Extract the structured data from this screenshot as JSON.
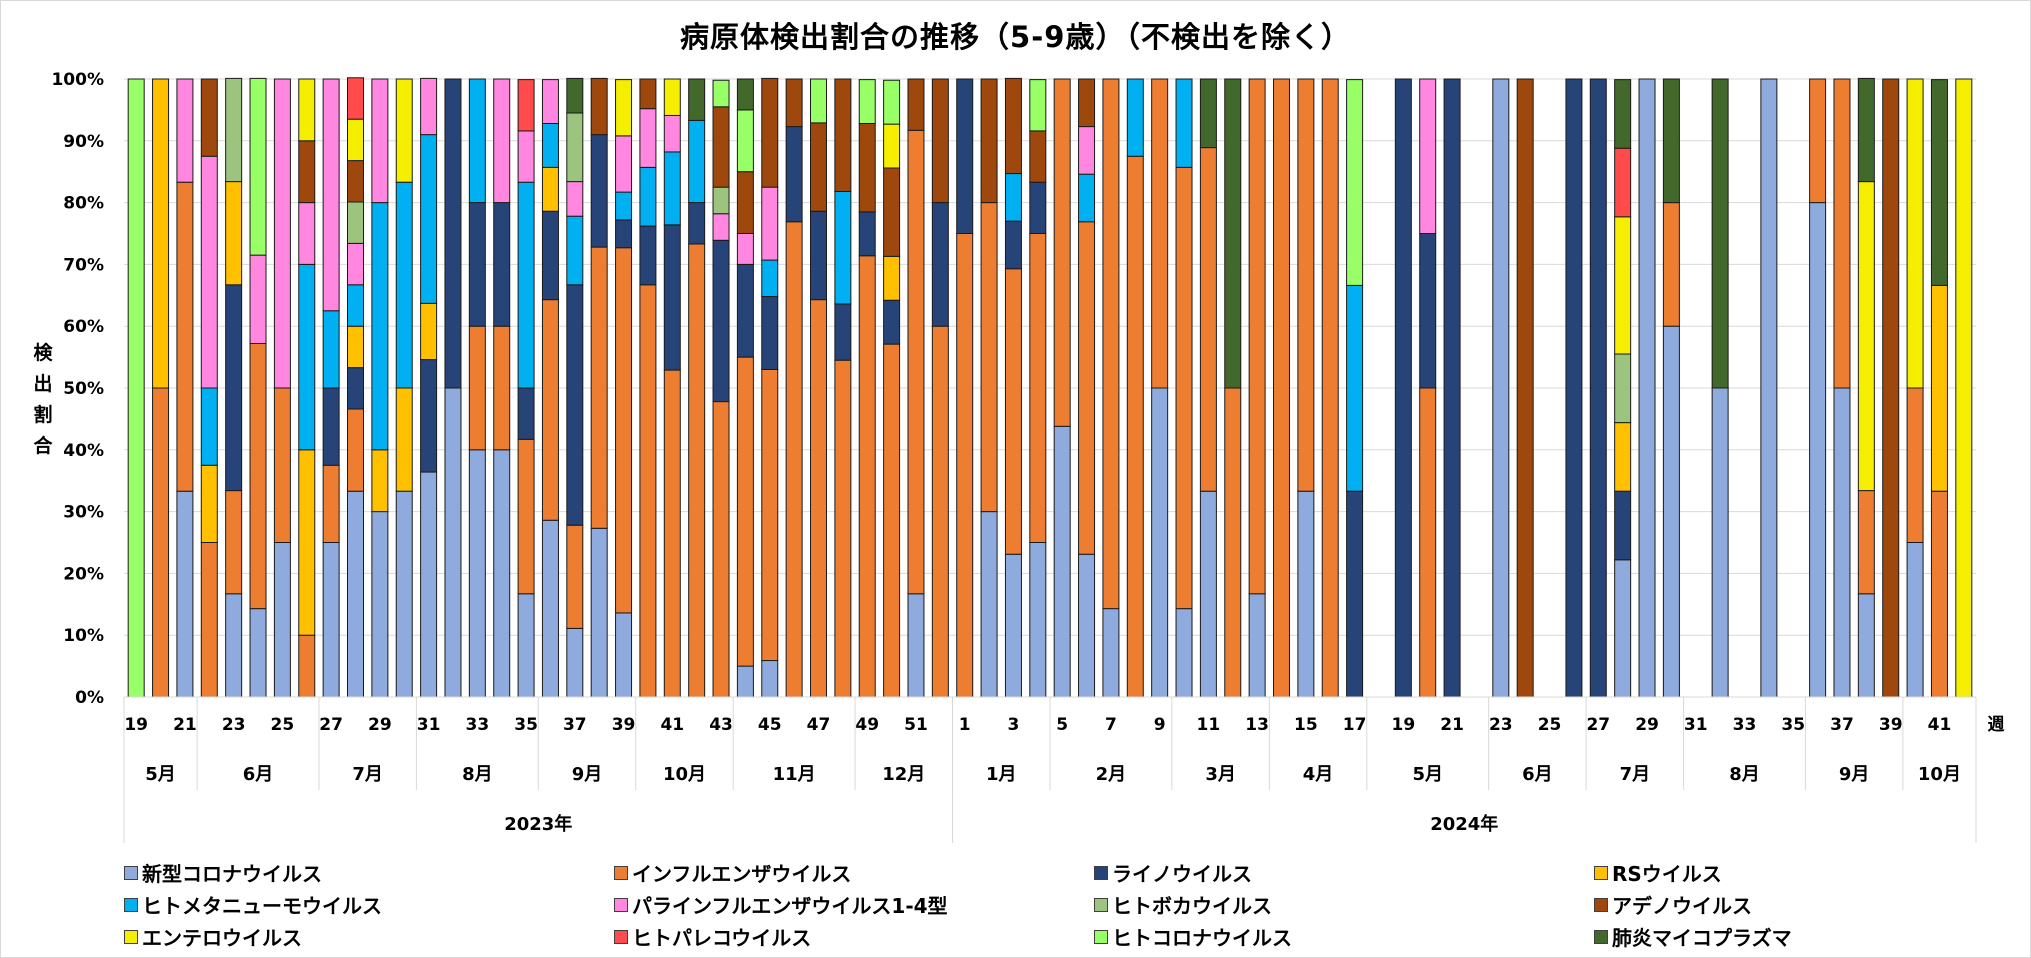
{
  "chart_data": {
    "type": "bar",
    "stacked": true,
    "percent_stacked": true,
    "title": "病原体検出割合の推移（5-9歳）（不検出を除く）",
    "ylabel": "検出割合",
    "ylabel_chars": [
      "検",
      "出",
      "割",
      "合"
    ],
    "xlabel": "週",
    "ylim": [
      0,
      100
    ],
    "yticks": [
      "0%",
      "10%",
      "20%",
      "30%",
      "40%",
      "50%",
      "60%",
      "70%",
      "80%",
      "90%",
      "100%"
    ],
    "grid": true,
    "legend_position": "bottom",
    "series": [
      {
        "key": "covid",
        "name": "新型コロナウイルス",
        "color": "#8FAADC"
      },
      {
        "key": "flu",
        "name": "インフルエンザウイルス",
        "color": "#ED7D31"
      },
      {
        "key": "rhino",
        "name": "ライノウイルス",
        "color": "#264478"
      },
      {
        "key": "rs",
        "name": "RSウイルス",
        "color": "#FFC000"
      },
      {
        "key": "hmpv",
        "name": "ヒトメタニューモウイルス",
        "color": "#00B0F0"
      },
      {
        "key": "para",
        "name": "パラインフルエンザウイルス1-4型",
        "color": "#FF87E0"
      },
      {
        "key": "boca",
        "name": "ヒトボカウイルス",
        "color": "#9DC47E"
      },
      {
        "key": "adeno",
        "name": "アデノウイルス",
        "color": "#9E480E"
      },
      {
        "key": "entero",
        "name": "エンテロウイルス",
        "color": "#F5EE00"
      },
      {
        "key": "parecho",
        "name": "ヒトパレコウイルス",
        "color": "#FF4B4B"
      },
      {
        "key": "hcov",
        "name": "ヒトコロナウイルス",
        "color": "#99FF66"
      },
      {
        "key": "myco",
        "name": "肺炎マイコプラズマ",
        "color": "#43682B"
      }
    ],
    "years": [
      {
        "label": "2023年",
        "months": [
          {
            "label": "5月",
            "weeks": 3
          },
          {
            "label": "6月",
            "weeks": 5
          },
          {
            "label": "7月",
            "weeks": 4
          },
          {
            "label": "8月",
            "weeks": 5
          },
          {
            "label": "9月",
            "weeks": 4
          },
          {
            "label": "10月",
            "weeks": 4
          },
          {
            "label": "11月",
            "weeks": 5
          },
          {
            "label": "12月",
            "weeks": 4
          }
        ]
      },
      {
        "label": "2024年",
        "months": [
          {
            "label": "1月",
            "weeks": 4
          },
          {
            "label": "2月",
            "weeks": 5
          },
          {
            "label": "3月",
            "weeks": 4
          },
          {
            "label": "4月",
            "weeks": 4
          },
          {
            "label": "5月",
            "weeks": 5
          },
          {
            "label": "6月",
            "weeks": 4
          },
          {
            "label": "7月",
            "weeks": 4
          },
          {
            "label": "8月",
            "weeks": 5
          },
          {
            "label": "9月",
            "weeks": 4
          },
          {
            "label": "10月",
            "weeks": 3
          }
        ]
      }
    ],
    "week_tick_labels": [
      {
        "year": 2023,
        "week": 19
      },
      {
        "year": 2023,
        "week": 21
      },
      {
        "year": 2023,
        "week": 23
      },
      {
        "year": 2023,
        "week": 25
      },
      {
        "year": 2023,
        "week": 27
      },
      {
        "year": 2023,
        "week": 29
      },
      {
        "year": 2023,
        "week": 31
      },
      {
        "year": 2023,
        "week": 33
      },
      {
        "year": 2023,
        "week": 35
      },
      {
        "year": 2023,
        "week": 37
      },
      {
        "year": 2023,
        "week": 39
      },
      {
        "year": 2023,
        "week": 41
      },
      {
        "year": 2023,
        "week": 43
      },
      {
        "year": 2023,
        "week": 45
      },
      {
        "year": 2023,
        "week": 47
      },
      {
        "year": 2023,
        "week": 49
      },
      {
        "year": 2023,
        "week": 51
      },
      {
        "year": 2024,
        "week": 1
      },
      {
        "year": 2024,
        "week": 3
      },
      {
        "year": 2024,
        "week": 5
      },
      {
        "year": 2024,
        "week": 7
      },
      {
        "year": 2024,
        "week": 9
      },
      {
        "year": 2024,
        "week": 11
      },
      {
        "year": 2024,
        "week": 13
      },
      {
        "year": 2024,
        "week": 15
      },
      {
        "year": 2024,
        "week": 17
      },
      {
        "year": 2024,
        "week": 19
      },
      {
        "year": 2024,
        "week": 21
      },
      {
        "year": 2024,
        "week": 23
      },
      {
        "year": 2024,
        "week": 25
      },
      {
        "year": 2024,
        "week": 27
      },
      {
        "year": 2024,
        "week": 29
      },
      {
        "year": 2024,
        "week": 31
      },
      {
        "year": 2024,
        "week": 33
      },
      {
        "year": 2024,
        "week": 35
      },
      {
        "year": 2024,
        "week": 37
      },
      {
        "year": 2024,
        "week": 39
      },
      {
        "year": 2024,
        "week": 41
      }
    ],
    "weeks": [
      {
        "year": 2023,
        "week": 19,
        "values": {
          "hcov": 100
        }
      },
      {
        "year": 2023,
        "week": 20,
        "values": {
          "flu": 50,
          "rs": 50
        }
      },
      {
        "year": 2023,
        "week": 21,
        "values": {
          "covid": 33.3,
          "flu": 50,
          "para": 16.7
        }
      },
      {
        "year": 2023,
        "week": 22,
        "values": {
          "flu": 25,
          "rs": 12.5,
          "hmpv": 12.5,
          "para": 37.5,
          "adeno": 12.5
        }
      },
      {
        "year": 2023,
        "week": 23,
        "values": {
          "covid": 16.7,
          "flu": 16.7,
          "rhino": 33.3,
          "rs": 16.7,
          "boca": 16.7
        }
      },
      {
        "year": 2023,
        "week": 24,
        "values": {
          "covid": 14.3,
          "flu": 42.9,
          "para": 14.3,
          "hcov": 28.6
        }
      },
      {
        "year": 2023,
        "week": 25,
        "values": {
          "covid": 25,
          "flu": 25,
          "para": 50
        }
      },
      {
        "year": 2023,
        "week": 26,
        "values": {
          "flu": 10,
          "rs": 30,
          "hmpv": 30,
          "para": 10,
          "adeno": 10,
          "entero": 10
        }
      },
      {
        "year": 2023,
        "week": 27,
        "values": {
          "covid": 25,
          "flu": 12.5,
          "rhino": 12.5,
          "hmpv": 12.5,
          "para": 37.5
        }
      },
      {
        "year": 2023,
        "week": 28,
        "values": {
          "covid": 33.3,
          "flu": 13.3,
          "rhino": 6.7,
          "rs": 6.7,
          "hmpv": 6.7,
          "para": 6.7,
          "boca": 6.7,
          "adeno": 6.7,
          "entero": 6.7,
          "parecho": 6.7
        }
      },
      {
        "year": 2023,
        "week": 29,
        "values": {
          "covid": 30,
          "rs": 10,
          "hmpv": 40,
          "para": 20
        }
      },
      {
        "year": 2023,
        "week": 30,
        "values": {
          "covid": 33.3,
          "rs": 16.7,
          "hmpv": 33.3,
          "entero": 16.7
        }
      },
      {
        "year": 2023,
        "week": 31,
        "values": {
          "covid": 36.4,
          "rhino": 18.2,
          "rs": 9.1,
          "hmpv": 27.3,
          "para": 9.1
        }
      },
      {
        "year": 2023,
        "week": 32,
        "values": {
          "covid": 50,
          "rhino": 50
        }
      },
      {
        "year": 2023,
        "week": 33,
        "values": {
          "covid": 40,
          "flu": 20,
          "rhino": 20,
          "hmpv": 20
        }
      },
      {
        "year": 2023,
        "week": 34,
        "values": {
          "covid": 40,
          "flu": 20,
          "rhino": 20,
          "para": 20
        }
      },
      {
        "year": 2023,
        "week": 35,
        "values": {
          "covid": 16.7,
          "flu": 25,
          "rhino": 8.3,
          "hmpv": 33.3,
          "para": 8.3,
          "parecho": 8.3
        }
      },
      {
        "year": 2023,
        "week": 36,
        "values": {
          "covid": 28.6,
          "flu": 35.7,
          "rhino": 14.3,
          "rs": 7.1,
          "hmpv": 7.1,
          "para": 7.1
        }
      },
      {
        "year": 2023,
        "week": 37,
        "values": {
          "covid": 11.1,
          "flu": 16.7,
          "rhino": 38.9,
          "hmpv": 11.1,
          "para": 5.6,
          "boca": 11.1,
          "myco": 5.6
        }
      },
      {
        "year": 2023,
        "week": 38,
        "values": {
          "covid": 27.3,
          "flu": 45.5,
          "rhino": 18.2,
          "adeno": 9.1
        }
      },
      {
        "year": 2023,
        "week": 39,
        "values": {
          "covid": 13.6,
          "flu": 59.1,
          "rhino": 4.5,
          "hmpv": 4.5,
          "para": 9.1,
          "entero": 9.1
        }
      },
      {
        "year": 2023,
        "week": 40,
        "values": {
          "flu": 66.7,
          "rhino": 9.5,
          "hmpv": 9.5,
          "para": 9.5,
          "adeno": 4.8
        }
      },
      {
        "year": 2023,
        "week": 41,
        "values": {
          "flu": 52.9,
          "rhino": 23.5,
          "hmpv": 11.8,
          "para": 5.9,
          "entero": 5.9
        }
      },
      {
        "year": 2023,
        "week": 42,
        "values": {
          "flu": 73.3,
          "rhino": 6.7,
          "hmpv": 13.3,
          "myco": 6.7
        }
      },
      {
        "year": 2023,
        "week": 43,
        "values": {
          "flu": 47.8,
          "rhino": 26.1,
          "para": 4.3,
          "boca": 4.3,
          "adeno": 13.0,
          "hcov": 4.3
        }
      },
      {
        "year": 2023,
        "week": 44,
        "values": {
          "covid": 5,
          "flu": 50,
          "rhino": 15,
          "para": 5,
          "adeno": 10,
          "hcov": 10,
          "myco": 5
        }
      },
      {
        "year": 2023,
        "week": 45,
        "values": {
          "covid": 5.9,
          "flu": 47.1,
          "rhino": 11.8,
          "hmpv": 5.9,
          "para": 11.8,
          "adeno": 17.6
        }
      },
      {
        "year": 2023,
        "week": 46,
        "values": {
          "flu": 76.9,
          "rhino": 15.4,
          "adeno": 7.7
        }
      },
      {
        "year": 2023,
        "week": 47,
        "values": {
          "flu": 64.3,
          "rhino": 14.3,
          "adeno": 14.3,
          "hcov": 7.1
        }
      },
      {
        "year": 2023,
        "week": 48,
        "values": {
          "flu": 54.5,
          "rhino": 9.1,
          "hmpv": 18.2,
          "adeno": 18.2
        }
      },
      {
        "year": 2023,
        "week": 49,
        "values": {
          "flu": 71.4,
          "rhino": 7.1,
          "adeno": 14.3,
          "hcov": 7.1
        }
      },
      {
        "year": 2023,
        "week": 50,
        "values": {
          "flu": 57.1,
          "rhino": 7.1,
          "rs": 7.1,
          "adeno": 14.3,
          "entero": 7.1,
          "hcov": 7.1
        }
      },
      {
        "year": 2023,
        "week": 51,
        "values": {
          "covid": 16.7,
          "flu": 75,
          "adeno": 8.3
        }
      },
      {
        "year": 2023,
        "week": 52,
        "values": {
          "flu": 60,
          "rhino": 20,
          "adeno": 20
        }
      },
      {
        "year": 2024,
        "week": 1,
        "values": {
          "flu": 75,
          "rhino": 25
        }
      },
      {
        "year": 2024,
        "week": 2,
        "values": {
          "covid": 30,
          "flu": 50,
          "adeno": 20
        }
      },
      {
        "year": 2024,
        "week": 3,
        "values": {
          "covid": 23.1,
          "flu": 46.2,
          "rhino": 7.7,
          "hmpv": 7.7,
          "adeno": 15.4
        }
      },
      {
        "year": 2024,
        "week": 4,
        "values": {
          "covid": 25,
          "flu": 50,
          "rhino": 8.3,
          "adeno": 8.3,
          "hcov": 8.3
        }
      },
      {
        "year": 2024,
        "week": 5,
        "values": {
          "covid": 43.8,
          "flu": 56.2
        }
      },
      {
        "year": 2024,
        "week": 6,
        "values": {
          "covid": 23.1,
          "flu": 53.8,
          "hmpv": 7.7,
          "para": 7.7,
          "adeno": 7.7
        }
      },
      {
        "year": 2024,
        "week": 7,
        "values": {
          "covid": 14.3,
          "flu": 85.7
        }
      },
      {
        "year": 2024,
        "week": 8,
        "values": {
          "flu": 87.5,
          "hmpv": 12.5
        }
      },
      {
        "year": 2024,
        "week": 9,
        "values": {
          "covid": 50,
          "flu": 50
        }
      },
      {
        "year": 2024,
        "week": 10,
        "values": {
          "covid": 14.3,
          "flu": 71.4,
          "hmpv": 14.3
        }
      },
      {
        "year": 2024,
        "week": 11,
        "values": {
          "covid": 33.3,
          "flu": 55.6,
          "myco": 11.1
        }
      },
      {
        "year": 2024,
        "week": 12,
        "values": {
          "flu": 50,
          "myco": 50
        }
      },
      {
        "year": 2024,
        "week": 13,
        "values": {
          "covid": 16.7,
          "flu": 83.3
        }
      },
      {
        "year": 2024,
        "week": 14,
        "values": {
          "flu": 100
        }
      },
      {
        "year": 2024,
        "week": 15,
        "values": {
          "covid": 33.3,
          "flu": 66.7
        }
      },
      {
        "year": 2024,
        "week": 16,
        "values": {
          "flu": 100
        }
      },
      {
        "year": 2024,
        "week": 17,
        "values": {
          "rhino": 33.3,
          "hmpv": 33.3,
          "hcov": 33.3
        }
      },
      {
        "year": 2024,
        "week": 18,
        "values": {}
      },
      {
        "year": 2024,
        "week": 19,
        "values": {
          "rhino": 100
        }
      },
      {
        "year": 2024,
        "week": 20,
        "values": {
          "flu": 50,
          "rhino": 25,
          "para": 25
        }
      },
      {
        "year": 2024,
        "week": 21,
        "values": {
          "rhino": 100
        }
      },
      {
        "year": 2024,
        "week": 22,
        "values": {}
      },
      {
        "year": 2024,
        "week": 23,
        "values": {
          "covid": 100
        }
      },
      {
        "year": 2024,
        "week": 24,
        "values": {
          "adeno": 100
        }
      },
      {
        "year": 2024,
        "week": 25,
        "values": {}
      },
      {
        "year": 2024,
        "week": 26,
        "values": {
          "rhino": 100
        }
      },
      {
        "year": 2024,
        "week": 27,
        "values": {
          "rhino": 100
        }
      },
      {
        "year": 2024,
        "week": 28,
        "values": {
          "covid": 22.2,
          "rhino": 11.1,
          "rs": 11.1,
          "boca": 11.1,
          "entero": 22.2,
          "parecho": 11.1,
          "myco": 11.1
        }
      },
      {
        "year": 2024,
        "week": 29,
        "values": {
          "covid": 100
        }
      },
      {
        "year": 2024,
        "week": 30,
        "values": {
          "covid": 60,
          "flu": 20,
          "myco": 20
        }
      },
      {
        "year": 2024,
        "week": 31,
        "values": {}
      },
      {
        "year": 2024,
        "week": 32,
        "values": {
          "covid": 50,
          "myco": 50
        }
      },
      {
        "year": 2024,
        "week": 33,
        "values": {}
      },
      {
        "year": 2024,
        "week": 34,
        "values": {
          "covid": 100
        }
      },
      {
        "year": 2024,
        "week": 35,
        "values": {}
      },
      {
        "year": 2024,
        "week": 36,
        "values": {
          "covid": 80,
          "flu": 20
        }
      },
      {
        "year": 2024,
        "week": 37,
        "values": {
          "covid": 50,
          "flu": 50
        }
      },
      {
        "year": 2024,
        "week": 38,
        "values": {
          "covid": 16.7,
          "flu": 16.7,
          "entero": 50,
          "myco": 16.7
        }
      },
      {
        "year": 2024,
        "week": 39,
        "values": {
          "adeno": 100
        }
      },
      {
        "year": 2024,
        "week": 40,
        "values": {
          "covid": 25,
          "flu": 25,
          "entero": 50
        }
      },
      {
        "year": 2024,
        "week": 41,
        "values": {
          "flu": 33.3,
          "rs": 33.3,
          "myco": 33.3
        }
      },
      {
        "year": 2024,
        "week": 42,
        "values": {
          "entero": 100
        }
      }
    ]
  }
}
